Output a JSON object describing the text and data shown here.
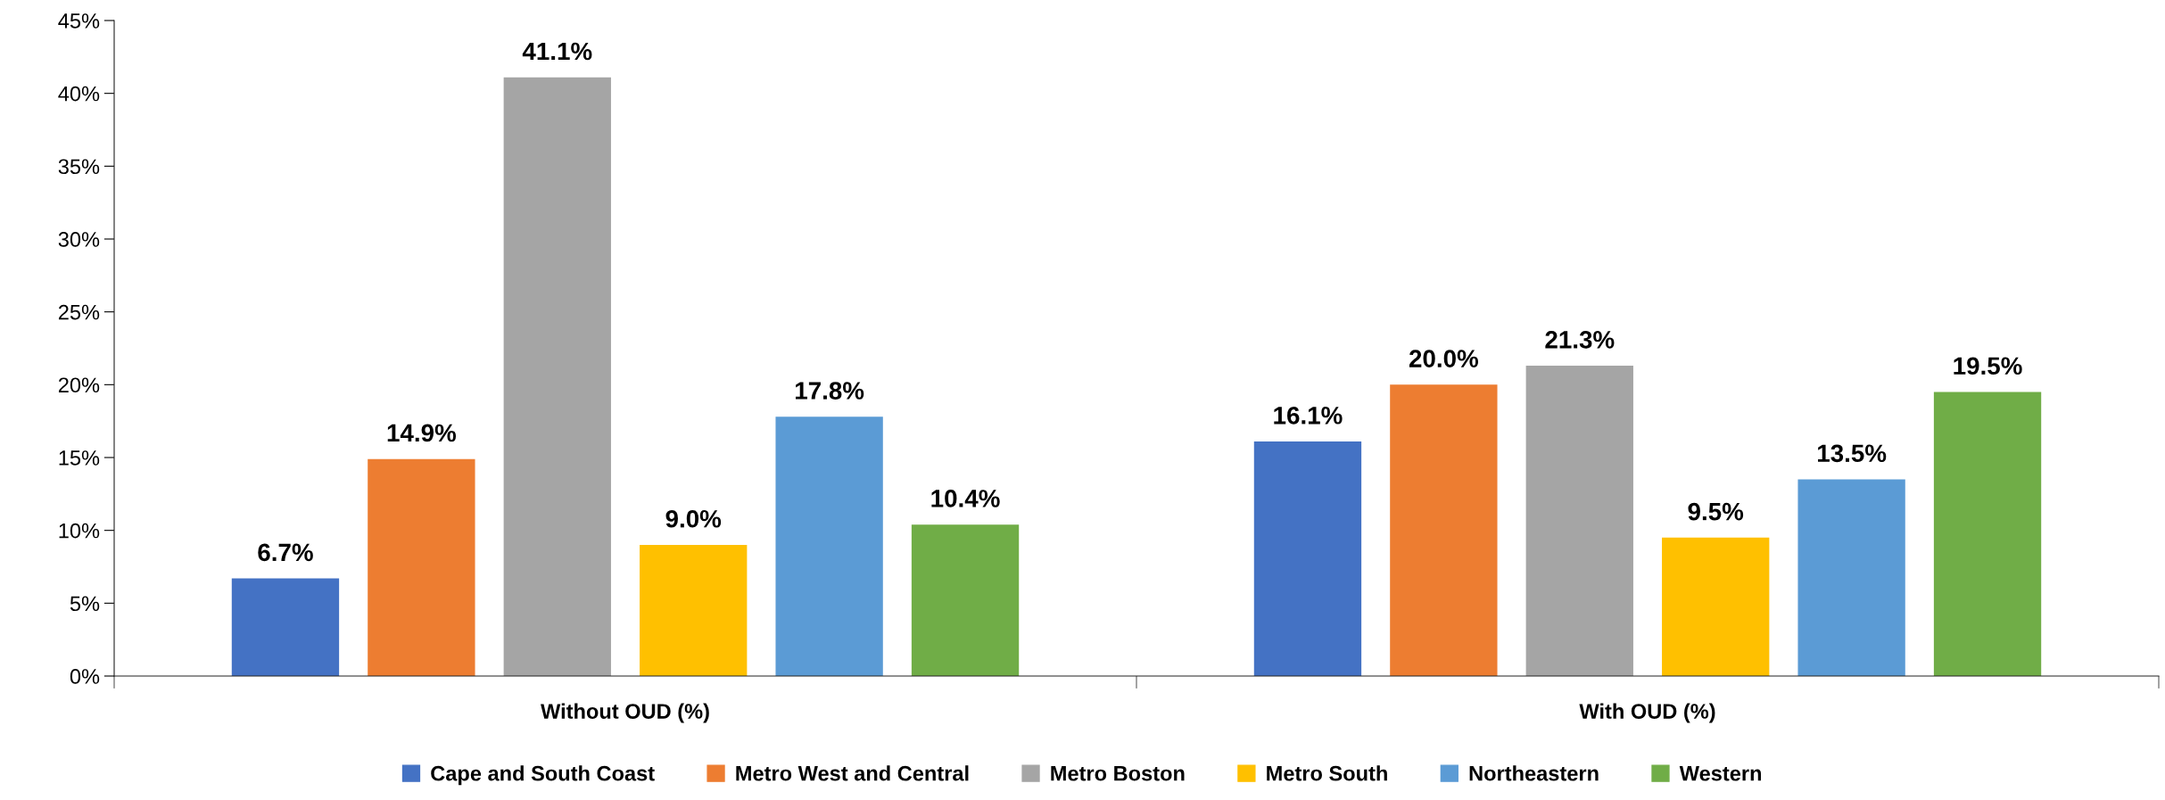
{
  "chart_data": {
    "type": "bar",
    "categories": [
      "Without OUD (%)",
      "With OUD (%)"
    ],
    "series": [
      {
        "name": "Cape and South Coast",
        "color": "#4472c4",
        "values": [
          6.7,
          16.1
        ],
        "value_labels": [
          "6.7%",
          "16.1%"
        ]
      },
      {
        "name": "Metro West and Central",
        "color": "#ed7d31",
        "values": [
          14.9,
          20.0
        ],
        "value_labels": [
          "14.9%",
          "20.0%"
        ]
      },
      {
        "name": "Metro Boston",
        "color": "#a5a5a5",
        "values": [
          41.1,
          21.3
        ],
        "value_labels": [
          "41.1%",
          "21.3%"
        ]
      },
      {
        "name": "Metro South",
        "color": "#ffc000",
        "values": [
          9.0,
          9.5
        ],
        "value_labels": [
          "9.0%",
          "9.5%"
        ]
      },
      {
        "name": "Northeastern",
        "color": "#5b9bd5",
        "values": [
          17.8,
          13.5
        ],
        "value_labels": [
          "17.8%",
          "13.5%"
        ]
      },
      {
        "name": "Western",
        "color": "#70ad47",
        "values": [
          10.4,
          19.5
        ],
        "value_labels": [
          "10.4%",
          "19.5%"
        ]
      }
    ],
    "ylim": [
      0,
      45
    ],
    "yticks": [
      {
        "value": 0,
        "label": "0%"
      },
      {
        "value": 5,
        "label": "5%"
      },
      {
        "value": 10,
        "label": "10%"
      },
      {
        "value": 15,
        "label": "15%"
      },
      {
        "value": 20,
        "label": "20%"
      },
      {
        "value": 25,
        "label": "25%"
      },
      {
        "value": 30,
        "label": "30%"
      },
      {
        "value": 35,
        "label": "35%"
      },
      {
        "value": 40,
        "label": "40%"
      },
      {
        "value": 45,
        "label": "45%"
      }
    ],
    "grid": false,
    "legend": "bottom"
  }
}
